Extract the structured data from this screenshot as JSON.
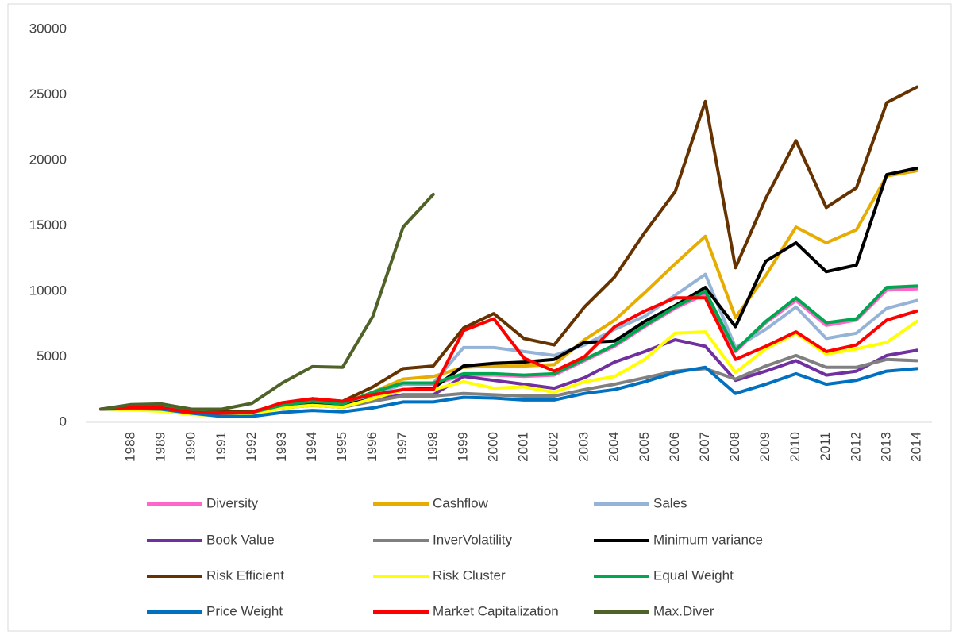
{
  "chart_data": {
    "type": "line",
    "categories": [
      null,
      "1988",
      "1989",
      "1990",
      "1991",
      "1992",
      "1993",
      "1994",
      "1995",
      "1996",
      "1997",
      "1998",
      "1999",
      "2000",
      "2001",
      "2002",
      "2003",
      "2004",
      "2005",
      "2006",
      "2007",
      "2008",
      "2009",
      "2010",
      "2011",
      "2012",
      "2013",
      "2014"
    ],
    "ylim": [
      0,
      30000
    ],
    "yticks": [
      0,
      5000,
      10000,
      15000,
      20000,
      25000,
      30000
    ],
    "grid": false,
    "legend": "bottom",
    "series": [
      {
        "name": "Diversity",
        "color": "#ff66cc",
        "values": [
          1000,
          1200,
          1100,
          800,
          700,
          750,
          1250,
          1550,
          1350,
          2200,
          2900,
          2900,
          3600,
          3600,
          3500,
          3600,
          4700,
          5800,
          7300,
          8700,
          9800,
          5400,
          7600,
          9300,
          7400,
          7800,
          10100,
          10200
        ]
      },
      {
        "name": "Cashflow",
        "color": "#e6ad00",
        "values": [
          1000,
          1200,
          1200,
          850,
          700,
          750,
          1300,
          1600,
          1450,
          2300,
          3300,
          3500,
          4200,
          4300,
          4300,
          4400,
          6300,
          7800,
          9900,
          12100,
          14200,
          8000,
          11200,
          14900,
          13700,
          14700,
          18800,
          19200
        ]
      },
      {
        "name": "Sales",
        "color": "#95b3d7",
        "values": [
          1000,
          1200,
          1100,
          800,
          650,
          700,
          1200,
          1500,
          1300,
          2100,
          2900,
          3000,
          5700,
          5700,
          5400,
          5100,
          5900,
          7100,
          8100,
          9700,
          11300,
          5700,
          7100,
          8800,
          6400,
          6800,
          8700,
          9300
        ]
      },
      {
        "name": "Book Value",
        "color": "#7030a0",
        "values": [
          1000,
          1100,
          1050,
          700,
          600,
          650,
          1100,
          1300,
          1150,
          1700,
          2100,
          2100,
          3500,
          3200,
          2900,
          2600,
          3400,
          4600,
          5400,
          6300,
          5800,
          3200,
          3900,
          4700,
          3600,
          3900,
          5100,
          5500
        ]
      },
      {
        "name": "InverVolatility",
        "color": "#808080",
        "values": [
          1000,
          1100,
          1050,
          700,
          600,
          650,
          1100,
          1300,
          1150,
          1600,
          2000,
          2000,
          2200,
          2100,
          2000,
          2000,
          2500,
          2900,
          3400,
          3900,
          4100,
          3300,
          4300,
          5100,
          4200,
          4200,
          4800,
          4700
        ]
      },
      {
        "name": "Minimum variance",
        "color": "#000000",
        "values": [
          1000,
          1200,
          1150,
          800,
          700,
          700,
          1200,
          1400,
          1300,
          1800,
          2500,
          2600,
          4300,
          4500,
          4600,
          4800,
          6100,
          6200,
          7700,
          8900,
          10300,
          7300,
          12300,
          13700,
          11500,
          12000,
          18900,
          19400
        ]
      },
      {
        "name": "Risk Efficient",
        "color": "#663300",
        "values": [
          1000,
          1300,
          1300,
          900,
          800,
          800,
          1400,
          1800,
          1600,
          2700,
          4100,
          4300,
          7200,
          8300,
          6400,
          5900,
          8800,
          11100,
          14500,
          17600,
          24500,
          11800,
          17100,
          21500,
          16400,
          17900,
          24400,
          25600
        ]
      },
      {
        "name": "Risk Cluster",
        "color": "#ffff00",
        "values": [
          1000,
          950,
          850,
          600,
          500,
          550,
          1100,
          1300,
          1150,
          1800,
          2500,
          2500,
          3100,
          2600,
          2700,
          2300,
          3100,
          3500,
          4800,
          6800,
          6900,
          3800,
          5600,
          6800,
          5200,
          5600,
          6100,
          7700
        ]
      },
      {
        "name": "Equal Weight",
        "color": "#00a650",
        "values": [
          1000,
          1200,
          1150,
          800,
          700,
          750,
          1300,
          1600,
          1400,
          2300,
          3000,
          3000,
          3700,
          3700,
          3600,
          3700,
          4800,
          5900,
          7400,
          8800,
          10000,
          5500,
          7700,
          9500,
          7600,
          7900,
          10300,
          10400
        ]
      },
      {
        "name": "Price Weight",
        "color": "#0070c0",
        "values": [
          1000,
          1050,
          1000,
          700,
          450,
          450,
          750,
          900,
          800,
          1100,
          1550,
          1550,
          1900,
          1850,
          1700,
          1700,
          2200,
          2500,
          3100,
          3800,
          4200,
          2200,
          2900,
          3700,
          2900,
          3200,
          3900,
          4100
        ]
      },
      {
        "name": "Market Capitalization",
        "color": "#ff0000",
        "values": [
          1000,
          1150,
          1100,
          750,
          700,
          750,
          1500,
          1800,
          1600,
          2100,
          2500,
          2500,
          7000,
          7900,
          4900,
          3900,
          5000,
          7300,
          8500,
          9500,
          9500,
          4800,
          5800,
          6900,
          5400,
          5900,
          7800,
          8500
        ]
      },
      {
        "name": "Max.Diver",
        "color": "#4f6228",
        "values": [
          1000,
          1350,
          1400,
          1000,
          1000,
          1450,
          3000,
          4250,
          4200,
          8100,
          14900,
          17400,
          null,
          null,
          null,
          null,
          null,
          null,
          null,
          null,
          null,
          null,
          null,
          null,
          null,
          null,
          null,
          null
        ]
      }
    ]
  }
}
